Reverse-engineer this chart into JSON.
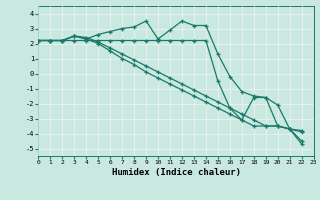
{
  "xlabel": "Humidex (Indice chaleur)",
  "xlim": [
    0,
    23
  ],
  "ylim": [
    -5.5,
    4.5
  ],
  "xticks": [
    0,
    1,
    2,
    3,
    4,
    5,
    6,
    7,
    8,
    9,
    10,
    11,
    12,
    13,
    14,
    15,
    16,
    17,
    18,
    19,
    20,
    21,
    22,
    23
  ],
  "yticks": [
    -5,
    -4,
    -3,
    -2,
    -1,
    0,
    1,
    2,
    3,
    4
  ],
  "bg_color": "#c8e8e0",
  "grid_color_white": "#e8f8f4",
  "grid_color_pink": "#f0d8d8",
  "line_color": "#1a7a6a",
  "lines": [
    {
      "x": [
        0,
        1,
        2,
        3,
        4,
        5,
        6,
        7,
        8,
        9,
        10,
        11,
        12,
        13,
        14,
        15,
        16,
        17,
        18,
        19,
        20,
        21,
        22
      ],
      "y": [
        2.2,
        2.2,
        2.2,
        2.5,
        2.3,
        2.6,
        2.8,
        3.0,
        3.1,
        3.5,
        2.3,
        2.9,
        3.5,
        3.2,
        3.2,
        1.3,
        -0.2,
        -1.2,
        -1.5,
        -1.6,
        -3.5,
        -3.7,
        -4.7
      ]
    },
    {
      "x": [
        0,
        1,
        2,
        3,
        4,
        5,
        6,
        7,
        8,
        9,
        10,
        11,
        12,
        13,
        14,
        15,
        16,
        17,
        18,
        19,
        20,
        21,
        22
      ],
      "y": [
        2.2,
        2.2,
        2.2,
        2.5,
        2.3,
        2.0,
        1.5,
        1.0,
        0.6,
        0.1,
        -0.3,
        -0.7,
        -1.1,
        -1.5,
        -1.9,
        -2.3,
        -2.7,
        -3.1,
        -3.5,
        -3.5,
        -3.5,
        -3.7,
        -3.8
      ]
    },
    {
      "x": [
        0,
        1,
        2,
        3,
        4,
        5,
        6,
        7,
        8,
        9,
        10,
        11,
        12,
        13,
        14,
        15,
        16,
        17,
        18,
        19,
        20,
        21,
        22
      ],
      "y": [
        2.2,
        2.2,
        2.2,
        2.5,
        2.4,
        2.1,
        1.7,
        1.3,
        0.9,
        0.5,
        0.1,
        -0.3,
        -0.7,
        -1.1,
        -1.5,
        -1.9,
        -2.3,
        -2.7,
        -3.1,
        -3.5,
        -3.5,
        -3.7,
        -4.5
      ]
    },
    {
      "x": [
        0,
        1,
        2,
        3,
        4,
        5,
        6,
        7,
        8,
        9,
        10,
        11,
        12,
        13,
        14,
        15,
        16,
        17,
        18,
        19,
        20,
        21,
        22
      ],
      "y": [
        2.2,
        2.2,
        2.2,
        2.2,
        2.2,
        2.2,
        2.2,
        2.2,
        2.2,
        2.2,
        2.2,
        2.2,
        2.2,
        2.2,
        2.2,
        -0.5,
        -2.3,
        -3.1,
        -1.6,
        -1.6,
        -2.1,
        -3.7,
        -3.9
      ]
    }
  ]
}
